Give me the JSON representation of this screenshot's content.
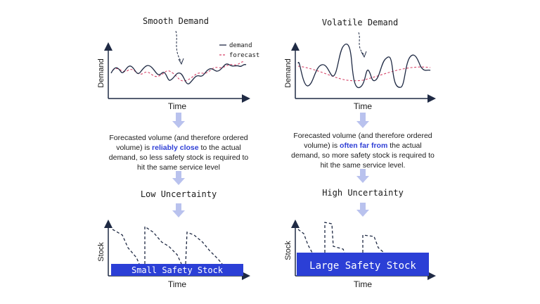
{
  "panels": [
    {
      "id": "left",
      "chart_title": "Smooth Demand",
      "legend": {
        "demand": "demand",
        "forecast": "forecast"
      },
      "demand_xlabel": "Time",
      "demand_ylabel": "Demand",
      "desc_pre": "Forecasted volume (and therefore ordered volume) is ",
      "desc_bold": "reliably close",
      "desc_post": " to the actual demand, so less safety stock is required to hit the same service level",
      "uncertainty": "Low Uncertainty",
      "stock_ylabel": "Stock",
      "stock_xlabel": "Time",
      "safety_stock_label": "Small Safety Stock"
    },
    {
      "id": "right",
      "chart_title": "Volatile Demand",
      "demand_xlabel": "Time",
      "demand_ylabel": "Demand",
      "desc_pre": "Forecasted volume (and therefore ordered volume) is ",
      "desc_bold": "often far from",
      "desc_post": " the actual demand, so more safety stock is required to hit the same service level.",
      "uncertainty": "High Uncertainty",
      "stock_ylabel": "Stock",
      "stock_xlabel": "Time",
      "safety_stock_label": "Large Safety Stock"
    }
  ],
  "colors": {
    "demand_line": "#1f2a44",
    "forecast_line": "#d6456a",
    "arrow": "#b9c2ee",
    "safety_stock": "#2b3fd6",
    "axis": "#1f2a44",
    "highlight_text": "#2f3fd6"
  }
}
